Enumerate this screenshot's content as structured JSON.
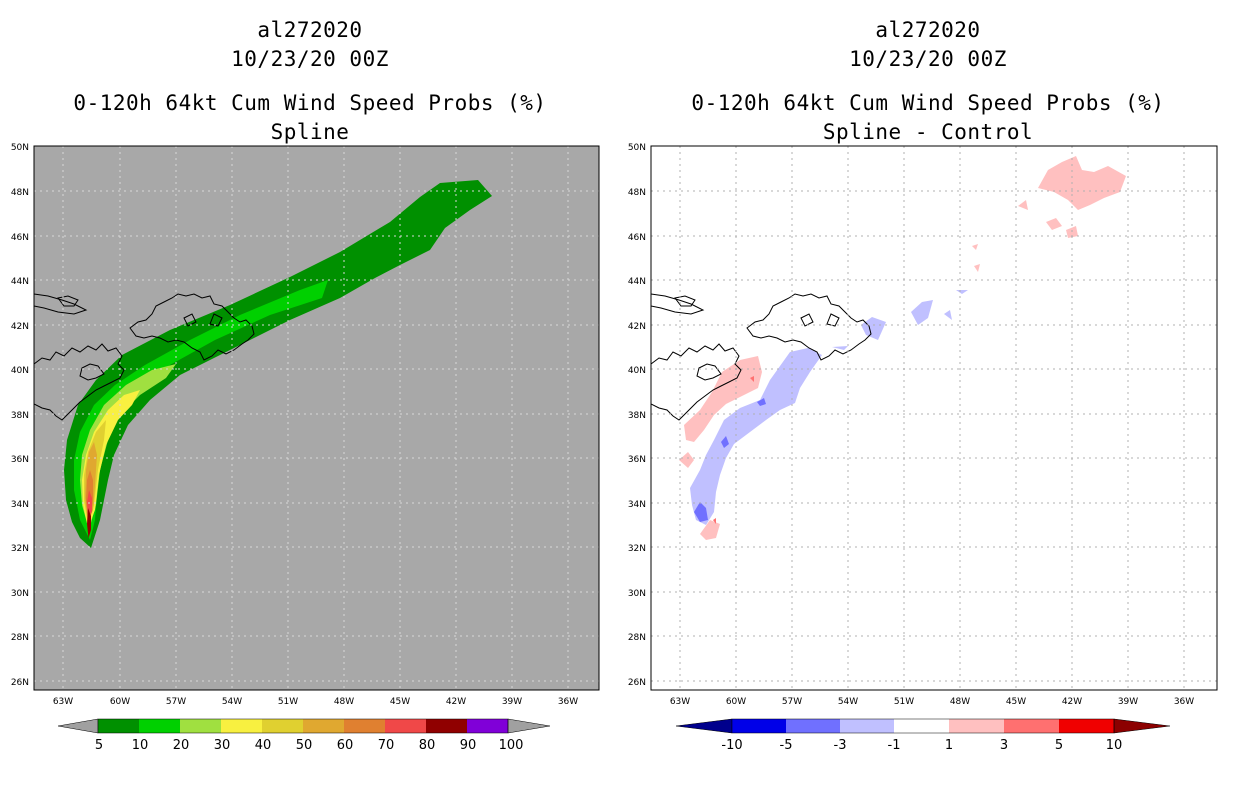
{
  "left_panel": {
    "storm_id": "al272020",
    "datetime": "10/23/20 00Z",
    "title": "0-120h 64kt Cum Wind Speed Probs (%)",
    "subtitle": "Spline"
  },
  "right_panel": {
    "storm_id": "al272020",
    "datetime": "10/23/20 00Z",
    "title": "0-120h 64kt Cum Wind Speed Probs (%)",
    "subtitle": "Spline - Control"
  },
  "lat_labels": [
    "50N",
    "48N",
    "46N",
    "44N",
    "42N",
    "40N",
    "38N",
    "36N",
    "34N",
    "32N",
    "30N",
    "28N",
    "26N"
  ],
  "lon_labels": [
    "63W",
    "60W",
    "57W",
    "54W",
    "51W",
    "48W",
    "45W",
    "42W",
    "39W",
    "36W"
  ],
  "left_colorbar": {
    "labels": [
      "5",
      "10",
      "20",
      "30",
      "40",
      "50",
      "60",
      "70",
      "80",
      "90",
      "100"
    ],
    "colors": [
      "#009000",
      "#00d000",
      "#a0e040",
      "#f8f040",
      "#e0d030",
      "#e0a830",
      "#e08030",
      "#f04848",
      "#900000",
      "#8000d8"
    ],
    "end_color": "#a0a0a0"
  },
  "right_colorbar": {
    "labels": [
      "-10",
      "-5",
      "-3",
      "-1",
      "1",
      "3",
      "5",
      "10"
    ],
    "colors": [
      "#0000e8",
      "#7070ff",
      "#c0c0ff",
      "#ffffff",
      "#ffc0c0",
      "#ff7070",
      "#f00000"
    ],
    "low_end_color": "#00008c",
    "high_end_color": "#8c0000"
  },
  "colors": {
    "map_background_left": "#a8a8a8",
    "land_outline": "#000000"
  }
}
